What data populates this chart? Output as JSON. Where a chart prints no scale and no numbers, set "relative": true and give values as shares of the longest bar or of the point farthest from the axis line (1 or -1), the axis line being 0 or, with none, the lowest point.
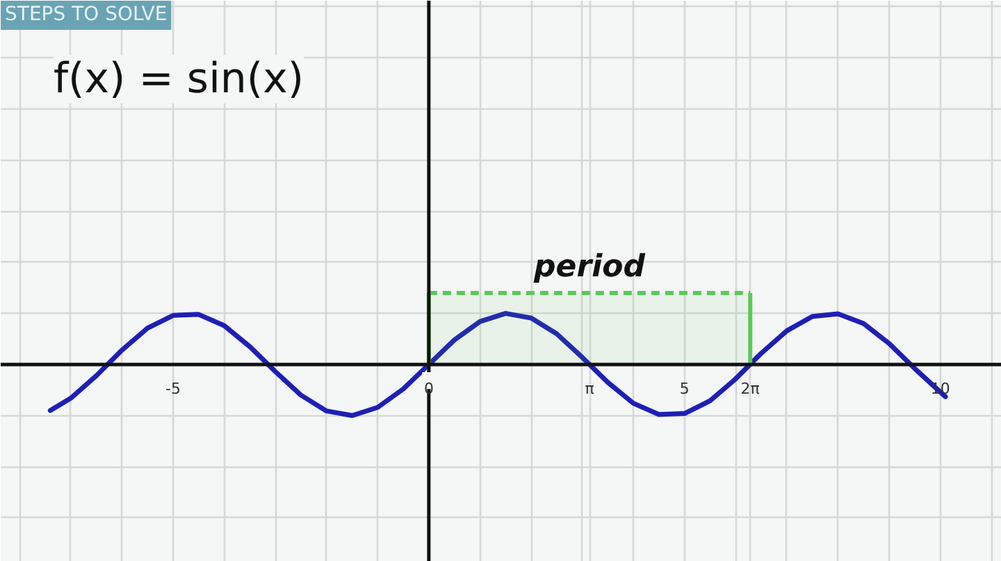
{
  "chart_data": {
    "type": "line",
    "title": "f(x) = sin(x)",
    "subtitle": "STEPS TO SOLVE",
    "xlim": [
      -8.37,
      11.2
    ],
    "xticks": [
      {
        "value": -8,
        "label": null
      },
      {
        "value": -7,
        "label": null
      },
      {
        "value": -6,
        "label": null
      },
      -5,
      {
        "value": -4,
        "label": null
      },
      {
        "value": -3,
        "label": null
      },
      {
        "value": -2,
        "label": null
      },
      {
        "value": -1,
        "label": null
      },
      0,
      {
        "value": 1,
        "label": null
      },
      {
        "value": 2,
        "label": null
      },
      {
        "value": 3,
        "label": null
      },
      {
        "value": 3.1416,
        "label": "π"
      },
      {
        "value": 4,
        "label": null
      },
      5,
      {
        "value": 6,
        "label": null
      },
      {
        "value": 6.2832,
        "label": "2π"
      },
      {
        "value": 7,
        "label": null
      },
      {
        "value": 8,
        "label": null
      },
      {
        "value": 9,
        "label": null
      },
      10,
      {
        "value": 11,
        "label": null
      }
    ],
    "relative": true,
    "tick_labels": "x",
    "grid": true,
    "series": [
      {
        "color": "#1f1fb4",
        "x": [
          -7.4,
          -7,
          -6.5,
          -6,
          -5.5,
          -5,
          -4.5,
          -4,
          -3.5,
          -3,
          -2.5,
          -2,
          -1.5,
          -1,
          -0.5,
          0,
          0.5,
          1,
          1.5,
          2,
          2.5,
          3,
          3.5,
          4,
          4.5,
          5,
          5.5,
          6,
          6.5,
          7,
          7.5,
          8,
          8.5,
          9,
          9.5,
          10,
          10.1
        ],
        "values": [
          -0.9,
          -0.66,
          -0.22,
          0.28,
          0.71,
          0.96,
          0.98,
          0.76,
          0.35,
          -0.14,
          -0.6,
          -0.91,
          -1.0,
          -0.84,
          -0.48,
          0,
          0.48,
          0.84,
          1.0,
          0.91,
          0.6,
          0.14,
          -0.35,
          -0.76,
          -0.98,
          -0.96,
          -0.71,
          -0.28,
          0.22,
          0.66,
          0.94,
          0.99,
          0.8,
          0.41,
          -0.08,
          -0.54,
          -0.63
        ]
      }
    ],
    "bands": [
      {
        "axis": "x",
        "from": 0,
        "to": 6.2832,
        "label": "period",
        "color": "#5cc85c"
      }
    ]
  }
}
